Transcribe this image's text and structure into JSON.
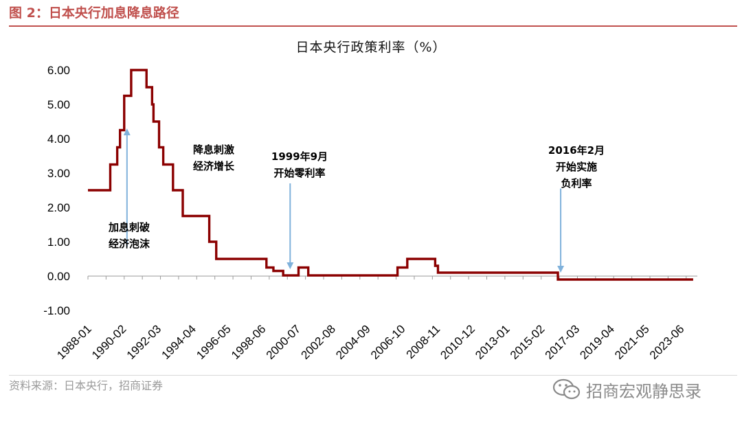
{
  "header": {
    "figure_title": "图 2：日本央行加息降息路径"
  },
  "footer": {
    "source": "资料来源：日本央行，招商证券",
    "watermark_text": "招商宏观静思录",
    "watermark_icon": "wechat-icon"
  },
  "colors": {
    "accent": "#c0504d",
    "series": "#8b0000",
    "arrow": "#7fb1db"
  },
  "chart_data": {
    "type": "line",
    "title": "日本央行政策利率（%）",
    "xlabel": "",
    "ylabel": "",
    "ylim": [
      -1,
      6
    ],
    "yticks": [
      "6.00",
      "5.00",
      "4.00",
      "3.00",
      "2.00",
      "1.00",
      "0.00",
      "-1.00"
    ],
    "ytick_values": [
      6,
      5,
      4,
      3,
      2,
      1,
      0,
      -1
    ],
    "xlim": [
      "1988-01",
      "2024-06"
    ],
    "xticks": [
      "1988-01",
      "1990-02",
      "1992-03",
      "1994-04",
      "1996-05",
      "1998-06",
      "2000-07",
      "2002-08",
      "2004-09",
      "2006-10",
      "2008-11",
      "2010-12",
      "2013-01",
      "2015-02",
      "2017-03",
      "2019-04",
      "2021-05",
      "2023-06"
    ],
    "grid": false,
    "legend": "none",
    "series": [
      {
        "step": "post",
        "points": [
          [
            "1988-01",
            2.5
          ],
          [
            "1989-05",
            3.25
          ],
          [
            "1989-10",
            3.75
          ],
          [
            "1989-12",
            4.25
          ],
          [
            "1990-03",
            5.25
          ],
          [
            "1990-08",
            6.0
          ],
          [
            "1991-07",
            5.5
          ],
          [
            "1991-11",
            5.0
          ],
          [
            "1991-12",
            4.5
          ],
          [
            "1992-04",
            3.75
          ],
          [
            "1992-07",
            3.25
          ],
          [
            "1993-02",
            2.5
          ],
          [
            "1993-09",
            1.75
          ],
          [
            "1995-04",
            1.0
          ],
          [
            "1995-09",
            0.5
          ],
          [
            "1998-09",
            0.25
          ],
          [
            "1999-02",
            0.15
          ],
          [
            "1999-09",
            0.02
          ],
          [
            "2000-08",
            0.25
          ],
          [
            "2001-03",
            0.02
          ],
          [
            "2006-07",
            0.25
          ],
          [
            "2007-02",
            0.5
          ],
          [
            "2008-10",
            0.3
          ],
          [
            "2008-12",
            0.1
          ],
          [
            "2016-02",
            -0.1
          ],
          [
            "2024-03",
            -0.1
          ]
        ]
      }
    ],
    "annotations": [
      {
        "lines": [
          "加息刺破",
          "经济泡沫"
        ],
        "arrow_from": [
          "1990-05",
          0.85
        ],
        "arrow_to": [
          "1990-05",
          4.2
        ]
      },
      {
        "lines": [
          "降息刺激",
          "经济增长"
        ]
      },
      {
        "lines": [
          "1999年9月",
          "开始零利率"
        ],
        "arrow_from": [
          "2000-02",
          2.7
        ],
        "arrow_to": [
          "2000-02",
          0.3
        ]
      },
      {
        "lines": [
          "2016年2月",
          "开始实施",
          "负利率"
        ],
        "arrow_from": [
          "2016-04",
          2.55
        ],
        "arrow_to": [
          "2016-04",
          0.2
        ]
      }
    ]
  }
}
